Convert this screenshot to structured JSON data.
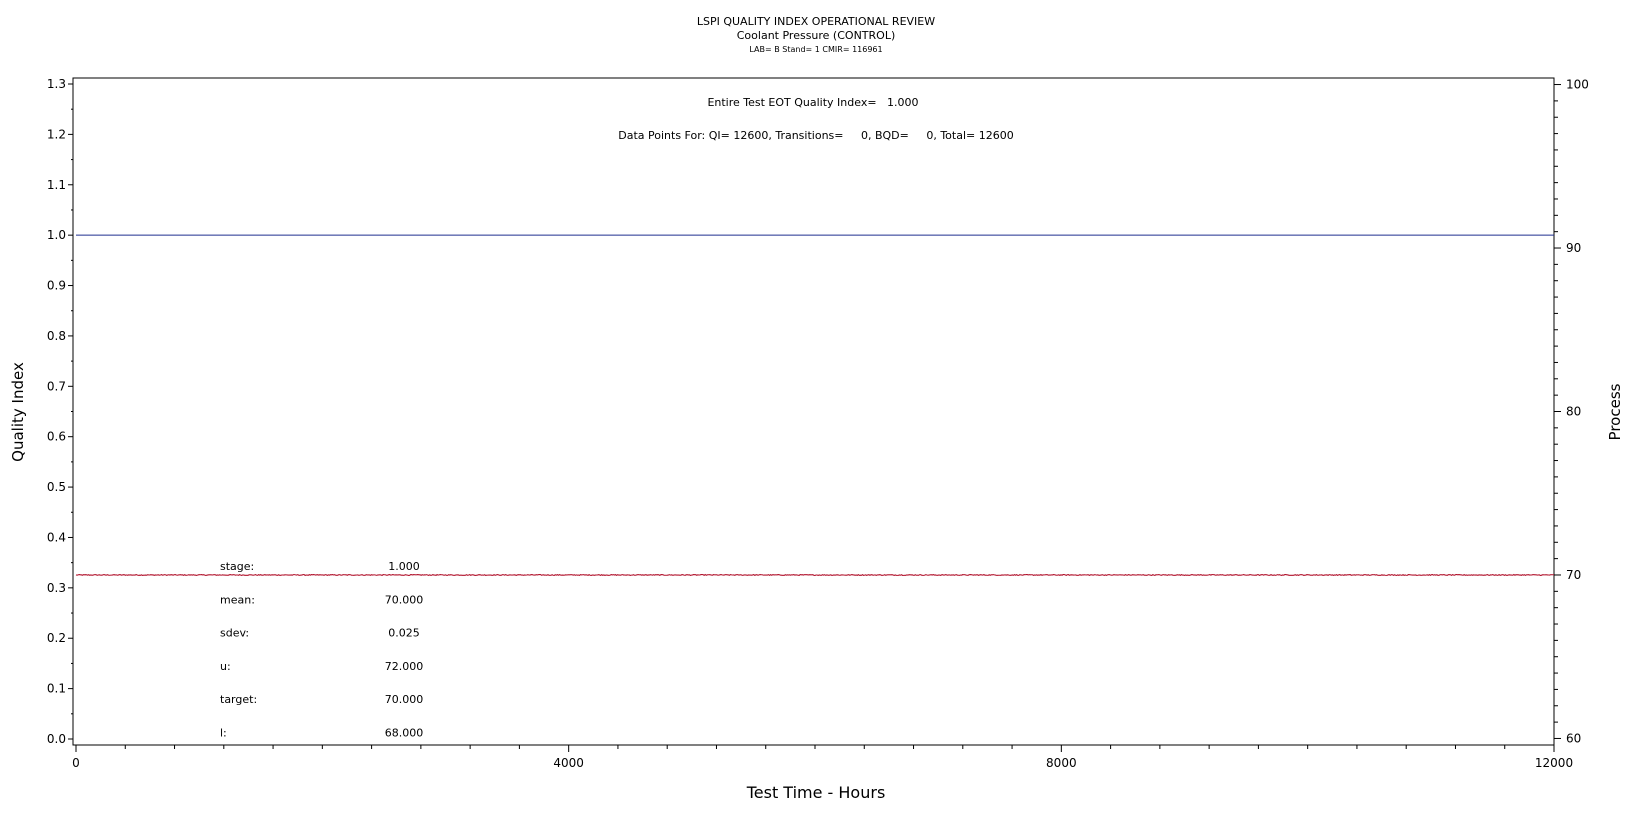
{
  "chart_data": {
    "type": "line",
    "title": "LSPI QUALITY INDEX OPERATIONAL REVIEW",
    "subtitle": "Coolant Pressure (CONTROL)",
    "subtitle2": "LAB= B Stand= 1 CMIR= 116961",
    "annotation_qi": "Entire Test EOT Quality Index=   1.000",
    "annotation_points": "Data Points For: QI= 12600, Transitions=     0, BQD=     0, Total= 12600",
    "xlabel": "Test Time - Hours",
    "ylabel_left": "Quality Index",
    "ylabel_right": "Process",
    "x_ticks": [
      0,
      4000,
      8000,
      12000
    ],
    "x_range": [
      0,
      12000
    ],
    "y_left_ticks": [
      "0.0",
      "0.1",
      "0.2",
      "0.3",
      "0.4",
      "0.5",
      "0.6",
      "0.7",
      "0.8",
      "0.9",
      "1.0",
      "1.1",
      "1.2",
      "1.3"
    ],
    "y_left_range": [
      0,
      1.3
    ],
    "y_right_ticks": [
      60,
      70,
      80,
      90,
      100
    ],
    "y_right_range": [
      59.6,
      100.4
    ],
    "grid": false,
    "series": [
      {
        "axis": "left",
        "color": "#1f2f8f",
        "x": [
          0,
          12000
        ],
        "values": [
          1.0,
          1.0
        ]
      },
      {
        "axis": "right",
        "color": "#b0102a",
        "x": [
          0,
          12000
        ],
        "values": [
          70.0,
          70.0
        ],
        "noise": 0.025
      }
    ],
    "stats": [
      {
        "label": "stage:",
        "value": "1.000"
      },
      {
        "label": "mean:",
        "value": "70.000"
      },
      {
        "label": "sdev:",
        "value": "0.025"
      },
      {
        "label": "u:",
        "value": "72.000"
      },
      {
        "label": "target:",
        "value": "70.000"
      },
      {
        "label": "l:",
        "value": "68.000"
      }
    ]
  }
}
